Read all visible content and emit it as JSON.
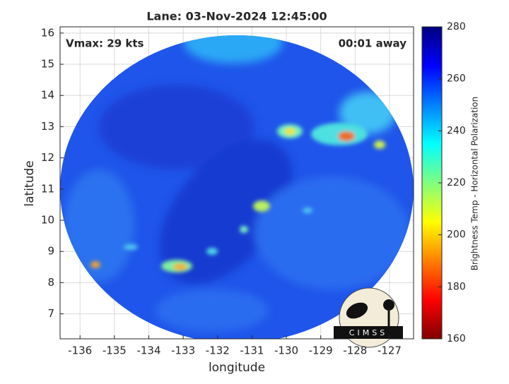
{
  "chart_data": {
    "type": "heatmap",
    "title": "Lane: 03-Nov-2024 12:45:00",
    "annotations": [
      "Vmax: 29 kts",
      "00:01 away"
    ],
    "xlabel": "longitude",
    "ylabel": "latitude",
    "xlim": [
      -136.58,
      -126.3
    ],
    "ylim": [
      6.2,
      16.2
    ],
    "xticks": [
      -136,
      -135,
      -134,
      -133,
      -132,
      -131,
      -130,
      -129,
      -128,
      -127
    ],
    "yticks": [
      7,
      8,
      9,
      10,
      11,
      12,
      13,
      14,
      15,
      16
    ],
    "grid": true,
    "colorbar": {
      "label": "Brightness Temp - Horizontal Polarization",
      "lim": [
        160,
        280
      ],
      "ticks": [
        160,
        180,
        200,
        220,
        240,
        260,
        280
      ],
      "colormap": "jet"
    },
    "logo": "CIMSS"
  }
}
